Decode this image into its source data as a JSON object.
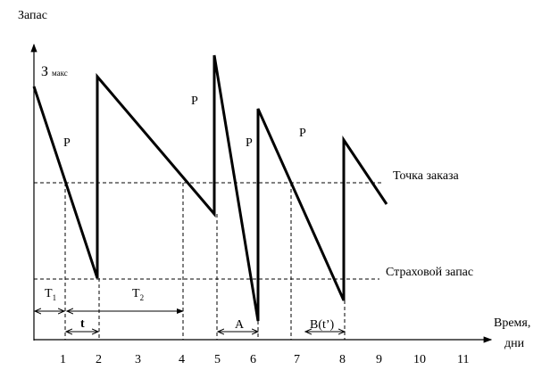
{
  "y_axis_label": "Запас",
  "x_axis_label_line1": "Время,",
  "x_axis_label_line2": "дни",
  "max_label_main": "З",
  "max_label_sub": "макс",
  "reorder_point_label": "Точка заказа",
  "safety_stock_label": "Страховой запас",
  "p_labels": [
    "P",
    "P",
    "P",
    "P"
  ],
  "interval_labels": {
    "T1_main": "T",
    "T1_sub": "1",
    "T2_main": "T",
    "T2_sub": "2",
    "t": "t",
    "A": "A",
    "B": "B(t’)"
  },
  "x_ticks": [
    "1",
    "2",
    "3",
    "4",
    "5",
    "6",
    "7",
    "8",
    "9",
    "10",
    "11"
  ]
}
